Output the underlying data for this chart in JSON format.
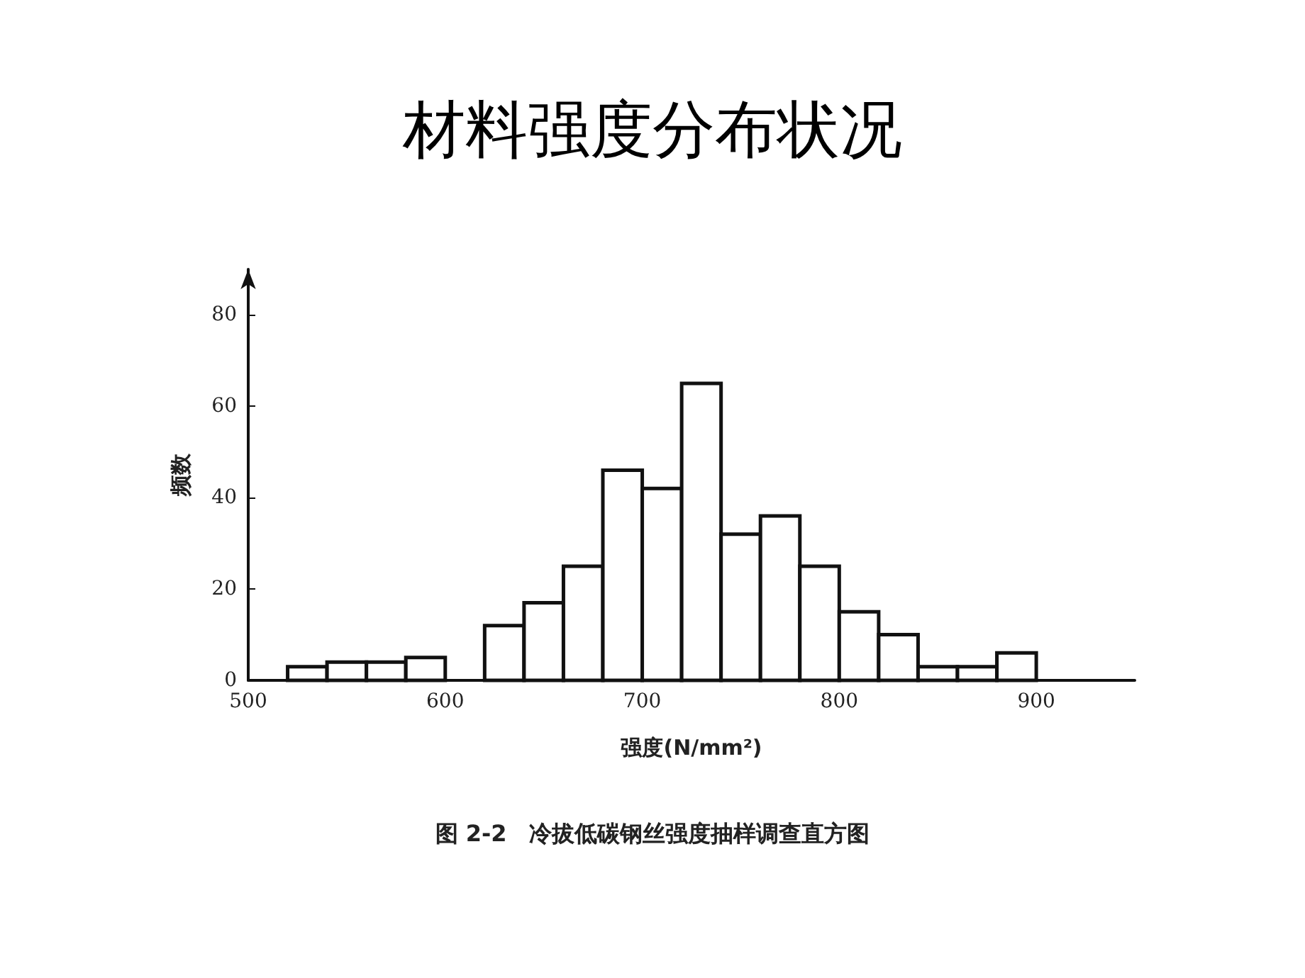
{
  "chart_data": {
    "type": "histogram",
    "title": "材料强度分布状况",
    "xlabel": "强度(N/mm²)",
    "ylabel": "频数",
    "annotations": [
      "图 2-2　冷拔低碳钢丝强度抽样调查直方图"
    ],
    "bins": [
      520,
      540,
      560,
      580,
      600,
      620,
      640,
      660,
      680,
      700,
      720,
      740,
      760,
      780,
      800,
      820,
      840,
      860,
      880,
      900
    ],
    "values": [
      3,
      4,
      4,
      5,
      0,
      12,
      17,
      25,
      46,
      42,
      65,
      32,
      36,
      25,
      15,
      10,
      3,
      3,
      6
    ],
    "color": "#ffffff",
    "xlim": [
      500,
      950
    ],
    "xticks": [
      500,
      600,
      700,
      800,
      900
    ],
    "ylim": [
      0,
      90
    ],
    "yticks": [
      0,
      20,
      40,
      60,
      80
    ],
    "grid": false
  }
}
